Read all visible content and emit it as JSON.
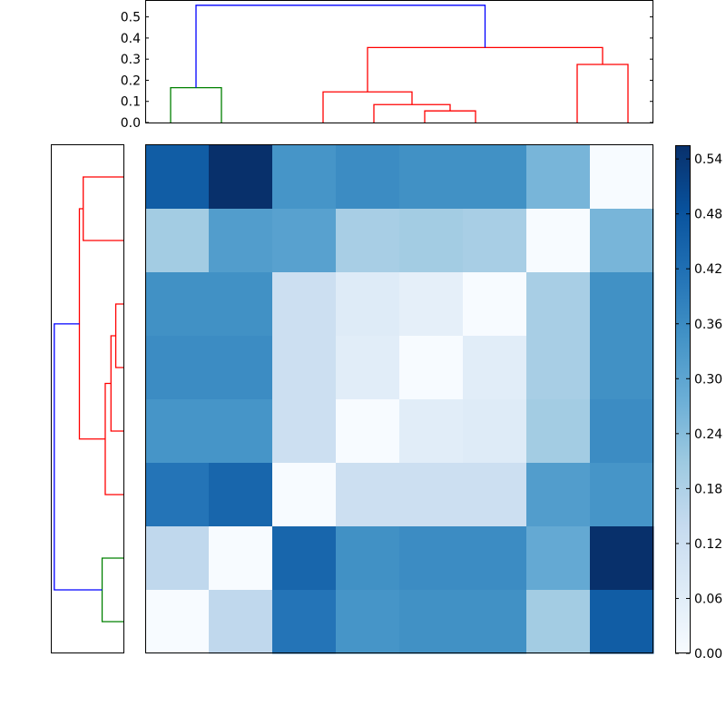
{
  "chart_data": [
    {
      "type": "dendrogram",
      "orientation": "top",
      "ylim": [
        0,
        0.58
      ],
      "yticks": [
        "0.0",
        "0.1",
        "0.2",
        "0.3",
        "0.4",
        "0.5"
      ],
      "leaf_count": 8,
      "colors": {
        "root": "#0000ff",
        "cluster_a": "#008000",
        "cluster_b": "#ff0000"
      },
      "links": [
        {
          "left": 0,
          "right": 1,
          "height": 0.165,
          "color": "#008000"
        },
        {
          "left": 5,
          "right": 6,
          "height": 0.055,
          "color": "#ff0000"
        },
        {
          "left": 4,
          "right": "5-6",
          "height": 0.085,
          "color": "#ff0000"
        },
        {
          "left": 3,
          "right": "4-6",
          "height": 0.145,
          "color": "#ff0000"
        },
        {
          "left": 8,
          "right": 9,
          "height": 0.275,
          "color": "#ff0000"
        },
        {
          "left": "3-6",
          "right": "8-9",
          "height": 0.355,
          "color": "#ff0000"
        },
        {
          "left": "0-1",
          "right": "3-9",
          "height": 0.555,
          "color": "#0000ff"
        }
      ]
    },
    {
      "type": "dendrogram",
      "orientation": "left",
      "leaf_count": 8,
      "colors": {
        "root": "#0000ff",
        "cluster_a": "#008000",
        "cluster_b": "#ff0000"
      },
      "links": [
        {
          "top": 0,
          "bottom": 1,
          "height": 0.168,
          "color": "#ff0000"
        },
        {
          "top": 2,
          "bottom": 3,
          "height": 0.032,
          "color": "#ff0000"
        },
        {
          "top": "2-3",
          "bottom": 4,
          "height": 0.052,
          "color": "#ff0000"
        },
        {
          "top": "2-4",
          "bottom": 5,
          "height": 0.076,
          "color": "#ff0000"
        },
        {
          "top": "0-1",
          "bottom": "2-5",
          "height": 0.184,
          "color": "#ff0000"
        },
        {
          "top": 6,
          "bottom": 7,
          "height": 0.089,
          "color": "#008000"
        },
        {
          "top": "0-5",
          "bottom": "6-7",
          "height": 0.289,
          "color": "#0000ff"
        }
      ]
    },
    {
      "type": "heatmap",
      "colormap": "Blues",
      "vmin": 0,
      "vmax": 0.555,
      "colorbar_ticks": [
        "0.00",
        "0.06",
        "0.12",
        "0.18",
        "0.24",
        "0.30",
        "0.36",
        "0.42",
        "0.48",
        "0.54"
      ],
      "values": [
        [
          0.46,
          0.555,
          0.34,
          0.36,
          0.35,
          0.35,
          0.26,
          0.0
        ],
        [
          0.2,
          0.32,
          0.31,
          0.19,
          0.2,
          0.19,
          0.0,
          0.26
        ],
        [
          0.35,
          0.35,
          0.12,
          0.07,
          0.05,
          0.0,
          0.19,
          0.35
        ],
        [
          0.36,
          0.36,
          0.12,
          0.06,
          0.0,
          0.06,
          0.19,
          0.35
        ],
        [
          0.34,
          0.34,
          0.12,
          0.0,
          0.06,
          0.07,
          0.2,
          0.36
        ],
        [
          0.41,
          0.44,
          0.0,
          0.12,
          0.12,
          0.12,
          0.32,
          0.34
        ],
        [
          0.15,
          0.0,
          0.44,
          0.35,
          0.36,
          0.36,
          0.29,
          0.555
        ],
        [
          0.0,
          0.15,
          0.41,
          0.34,
          0.35,
          0.35,
          0.2,
          0.46
        ]
      ]
    }
  ]
}
